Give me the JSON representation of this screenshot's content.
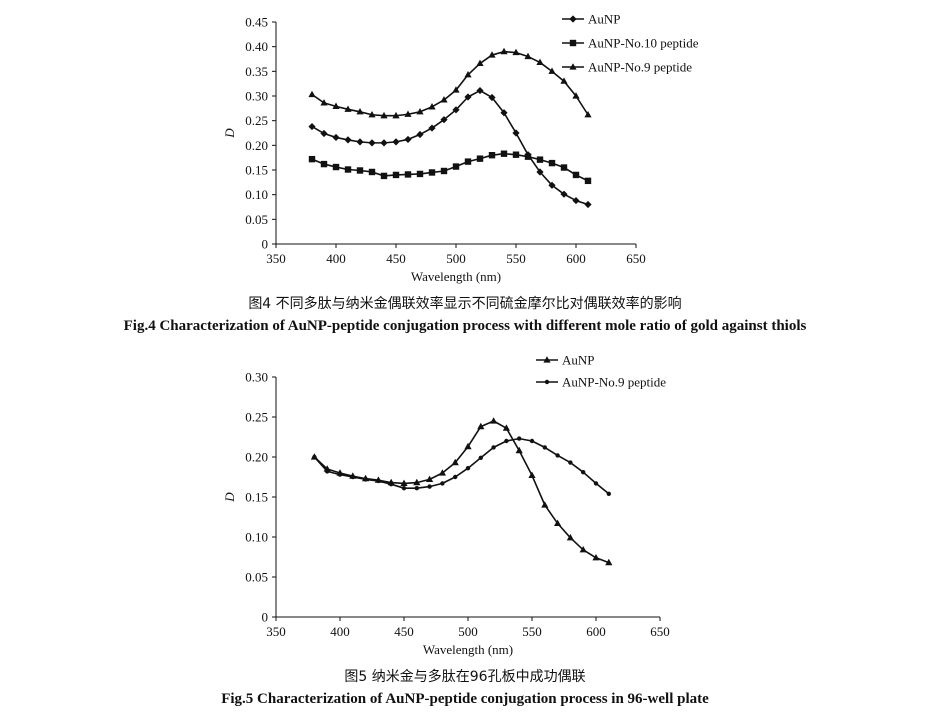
{
  "figures": [
    {
      "caption_cn": "图4  不同多肽与纳米金偶联效率显示不同硫金摩尔比对偶联效率的影响",
      "caption_en": "Fig.4   Characterization of AuNP-peptide conjugation process with different mole ratio of gold against thiols"
    },
    {
      "caption_cn": "图5  纳米金与多肽在96孔板中成功偶联",
      "caption_en": "Fig.5   Characterization of AuNP-peptide conjugation process in 96-well plate"
    }
  ],
  "chart_data": [
    {
      "type": "line",
      "xlabel": "Wavelength (nm)",
      "ylabel": "D",
      "xlim": [
        350,
        650
      ],
      "ylim": [
        0,
        0.45
      ],
      "xticks": [
        "350",
        "400",
        "450",
        "500",
        "550",
        "600",
        "650"
      ],
      "yticks": [
        "0",
        "0.05",
        "0.10",
        "0.15",
        "0.20",
        "0.25",
        "0.30",
        "0.35",
        "0.40",
        "0.45"
      ],
      "grid": false,
      "legend_position": "top-right",
      "series": [
        {
          "name": "AuNP",
          "marker": "diamond",
          "x": [
            380,
            390,
            400,
            410,
            420,
            430,
            440,
            450,
            460,
            470,
            480,
            490,
            500,
            510,
            520,
            530,
            540,
            550,
            560,
            570,
            580,
            590,
            600,
            610
          ],
          "values": [
            0.238,
            0.224,
            0.216,
            0.211,
            0.207,
            0.205,
            0.205,
            0.207,
            0.212,
            0.222,
            0.235,
            0.252,
            0.272,
            0.298,
            0.311,
            0.297,
            0.266,
            0.225,
            0.181,
            0.146,
            0.119,
            0.101,
            0.088,
            0.08
          ]
        },
        {
          "name": "AuNP-No.10 peptide",
          "marker": "square",
          "x": [
            380,
            390,
            400,
            410,
            420,
            430,
            440,
            450,
            460,
            470,
            480,
            490,
            500,
            510,
            520,
            530,
            540,
            550,
            560,
            570,
            580,
            590,
            600,
            610
          ],
          "values": [
            0.172,
            0.162,
            0.156,
            0.151,
            0.149,
            0.146,
            0.138,
            0.14,
            0.141,
            0.142,
            0.145,
            0.148,
            0.157,
            0.167,
            0.173,
            0.18,
            0.183,
            0.181,
            0.177,
            0.171,
            0.164,
            0.155,
            0.14,
            0.128
          ]
        },
        {
          "name": "AuNP-No.9 peptide",
          "marker": "triangle",
          "x": [
            380,
            390,
            400,
            410,
            420,
            430,
            440,
            450,
            460,
            470,
            480,
            490,
            500,
            510,
            520,
            530,
            540,
            550,
            560,
            570,
            580,
            590,
            600,
            610
          ],
          "values": [
            0.303,
            0.286,
            0.279,
            0.273,
            0.268,
            0.262,
            0.26,
            0.26,
            0.263,
            0.268,
            0.278,
            0.292,
            0.312,
            0.343,
            0.366,
            0.383,
            0.39,
            0.388,
            0.38,
            0.368,
            0.35,
            0.33,
            0.3,
            0.262
          ]
        }
      ]
    },
    {
      "type": "line",
      "xlabel": "Wavelength (nm)",
      "ylabel": "D",
      "xlim": [
        350,
        650
      ],
      "ylim": [
        0,
        0.3
      ],
      "xticks": [
        "350",
        "400",
        "450",
        "500",
        "550",
        "600",
        "650"
      ],
      "yticks": [
        "0",
        "0.05",
        "0.10",
        "0.15",
        "0.20",
        "0.25",
        "0.30"
      ],
      "grid": false,
      "legend_position": "top-right",
      "series": [
        {
          "name": "AuNP",
          "marker": "triangle",
          "x": [
            380,
            390,
            400,
            410,
            420,
            430,
            440,
            450,
            460,
            470,
            480,
            490,
            500,
            510,
            520,
            530,
            540,
            550,
            560,
            570,
            580,
            590,
            600,
            610
          ],
          "values": [
            0.2,
            0.185,
            0.18,
            0.176,
            0.173,
            0.171,
            0.168,
            0.167,
            0.168,
            0.172,
            0.18,
            0.193,
            0.213,
            0.238,
            0.245,
            0.236,
            0.208,
            0.177,
            0.14,
            0.117,
            0.099,
            0.084,
            0.074,
            0.068
          ]
        },
        {
          "name": "AuNP-No.9 peptide",
          "marker": "dot",
          "x": [
            380,
            390,
            400,
            410,
            420,
            430,
            440,
            450,
            460,
            470,
            480,
            490,
            500,
            510,
            520,
            530,
            540,
            550,
            560,
            570,
            580,
            590,
            600,
            610
          ],
          "values": [
            0.2,
            0.182,
            0.178,
            0.175,
            0.172,
            0.17,
            0.166,
            0.161,
            0.161,
            0.163,
            0.167,
            0.175,
            0.186,
            0.199,
            0.212,
            0.22,
            0.223,
            0.22,
            0.212,
            0.202,
            0.193,
            0.181,
            0.167,
            0.154
          ]
        }
      ]
    }
  ]
}
